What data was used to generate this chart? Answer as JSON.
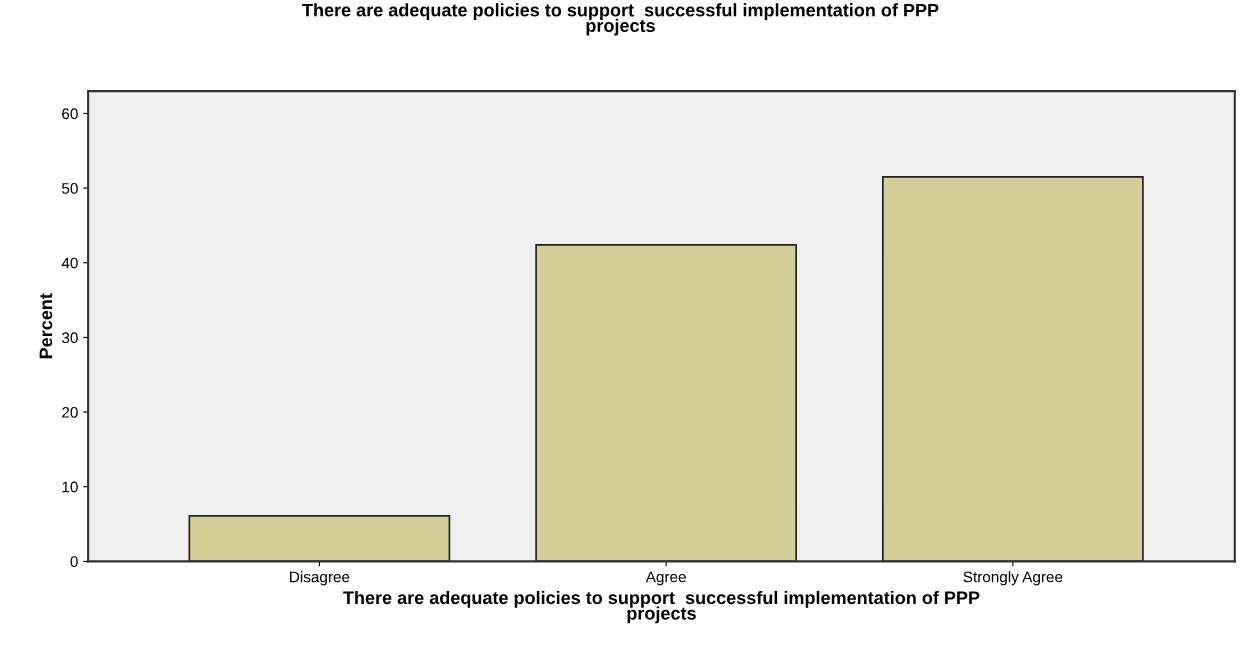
{
  "chart_data": {
    "type": "bar",
    "title": "There are adequate policies to support  successful implementation of PPP\nprojects",
    "xlabel": "There are adequate policies to support  successful implementation of PPP\nprojects",
    "ylabel": "Percent",
    "categories": [
      "Disagree",
      "Agree",
      "Strongly Agree"
    ],
    "values": [
      6.1,
      42.4,
      51.5
    ],
    "color": "#d3cd97",
    "ylim": [
      0,
      63
    ],
    "yticks": [
      0,
      10,
      20,
      30,
      40,
      50,
      60
    ],
    "grid": false
  }
}
